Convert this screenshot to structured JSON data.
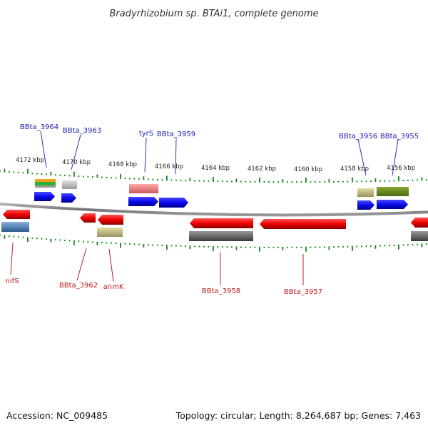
{
  "title": "Bradyrhizobium sp. BTAi1, complete genome",
  "footer": {
    "accession": "Accession: NC_009485",
    "summary": "Topology: circular; Length: 8,264,687 bp; Genes: 7,463"
  },
  "kbp_labels": [
    "4172 kbp",
    "4170 kbp",
    "4168 kbp",
    "4166 kbp",
    "4164 kbp",
    "4162 kbp",
    "4160 kbp",
    "4158 kbp",
    "4156 kbp"
  ],
  "gene_labels_top": [
    "BBta_3964",
    "BBta_3963",
    "tyrS",
    "BBta_3959",
    "BBta_3956",
    "BBta_3955"
  ],
  "gene_labels_bottom": [
    "nifS",
    "BBta_3962",
    "anmK",
    "BBta_3958",
    "BBta_3957"
  ],
  "colors": {
    "forward": "#1010e0",
    "reverse": "#e00000",
    "tick": "#118811",
    "backbone": "#888888",
    "label_top": "#1a1ab4",
    "label_bottom": "#c41a1a"
  }
}
